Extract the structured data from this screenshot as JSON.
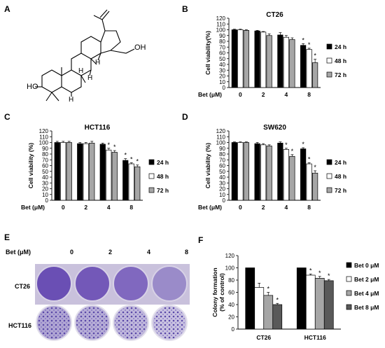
{
  "panels": {
    "a": {
      "letter": "A",
      "atom_labels": [
        "HO",
        "OH",
        "H",
        "H",
        "H",
        "H"
      ]
    },
    "b": {
      "letter": "B"
    },
    "c": {
      "letter": "C"
    },
    "d": {
      "letter": "D"
    },
    "e": {
      "letter": "E",
      "dose_label": "Bet (μM)",
      "doses": [
        "0",
        "2",
        "4",
        "8"
      ],
      "rows": [
        "CT26",
        "HCT116"
      ]
    },
    "f": {
      "letter": "F"
    }
  },
  "colors": {
    "black": "#000000",
    "white": "#ffffff",
    "gray": "#a6a6a6",
    "dark": "#595959",
    "violet": "#6c56b2"
  },
  "chart_data": [
    {
      "id": "B",
      "type": "bar",
      "title": "CT26",
      "xlabel": "Bet (μM)",
      "ylabel": "Cell viability(%)",
      "ylim": [
        0,
        120
      ],
      "yticks": [
        "0",
        "10",
        "20",
        "30",
        "40",
        "50",
        "60",
        "70",
        "80",
        "90",
        "100",
        "110",
        "120"
      ],
      "categories": [
        "0",
        "2",
        "4",
        "8"
      ],
      "series": [
        {
          "name": "24 h",
          "values": [
            100,
            98,
            91,
            73
          ],
          "errors": [
            1,
            1,
            4,
            3
          ]
        },
        {
          "name": "48 h",
          "values": [
            100,
            96,
            87,
            66
          ],
          "errors": [
            1,
            1,
            3,
            2
          ]
        },
        {
          "name": "72 h",
          "values": [
            99,
            90,
            83,
            43
          ],
          "errors": [
            1,
            3,
            3,
            6
          ]
        }
      ],
      "annotations": [
        "*",
        "*",
        "*"
      ],
      "legend": "right"
    },
    {
      "id": "C",
      "type": "bar",
      "title": "HCT116",
      "xlabel": "Bet (μM)",
      "ylabel": "Cell viability (%)",
      "ylim": [
        0,
        120
      ],
      "yticks": [
        "0",
        "10",
        "20",
        "30",
        "40",
        "50",
        "60",
        "70",
        "80",
        "90",
        "100",
        "110",
        "120"
      ],
      "categories": [
        "0",
        "2",
        "4",
        "8"
      ],
      "series": [
        {
          "name": "24 h",
          "values": [
            100,
            98,
            97,
            69
          ],
          "errors": [
            2,
            2,
            2,
            3
          ]
        },
        {
          "name": "48 h",
          "values": [
            100,
            98,
            87,
            63
          ],
          "errors": [
            2,
            2,
            3,
            2
          ]
        },
        {
          "name": "72 h",
          "values": [
            100,
            99,
            83,
            58
          ],
          "errors": [
            2,
            3,
            3,
            3
          ]
        }
      ],
      "annotations": [
        "*",
        "*",
        "*",
        "*",
        "*"
      ],
      "legend": "right"
    },
    {
      "id": "D",
      "type": "bar",
      "title": "SW620",
      "xlabel": "Bet (μM)",
      "ylabel": "Cell viability (%)",
      "ylim": [
        0,
        120
      ],
      "yticks": [
        "0",
        "10",
        "20",
        "30",
        "40",
        "50",
        "60",
        "70",
        "80",
        "90",
        "100",
        "110",
        "120"
      ],
      "categories": [
        "0",
        "2",
        "4",
        "8"
      ],
      "series": [
        {
          "name": "24 h",
          "values": [
            100,
            98,
            99,
            89
          ],
          "errors": [
            1,
            2,
            2,
            2
          ]
        },
        {
          "name": "48 h",
          "values": [
            100,
            96,
            88,
            63
          ],
          "errors": [
            1,
            2,
            2,
            2
          ]
        },
        {
          "name": "72 h",
          "values": [
            100,
            94,
            76,
            47
          ],
          "errors": [
            1,
            2,
            3,
            4
          ]
        }
      ],
      "annotations": [
        "*",
        "*",
        "*",
        "*",
        "*"
      ],
      "legend": "right"
    },
    {
      "id": "F",
      "type": "bar",
      "title": "",
      "xlabel": "",
      "ylabel": "Colony formation (% of control)",
      "ylim": [
        0,
        120
      ],
      "yticks": [
        "0",
        "20",
        "40",
        "60",
        "80",
        "100",
        "120"
      ],
      "categories": [
        "CT26",
        "HCT116"
      ],
      "series": [
        {
          "name": "Bet 0 μM",
          "values": [
            100,
            100
          ],
          "errors": [
            0,
            0
          ]
        },
        {
          "name": "Bet 2 μM",
          "values": [
            68,
            88
          ],
          "errors": [
            7,
            2
          ]
        },
        {
          "name": "Bet 4 μM",
          "values": [
            55,
            83
          ],
          "errors": [
            5,
            3
          ]
        },
        {
          "name": "Bet 8 μM",
          "values": [
            40,
            79
          ],
          "errors": [
            2,
            2
          ]
        }
      ],
      "annotations": [
        "*",
        "*",
        "*",
        "*",
        "*"
      ],
      "legend": "right"
    }
  ]
}
